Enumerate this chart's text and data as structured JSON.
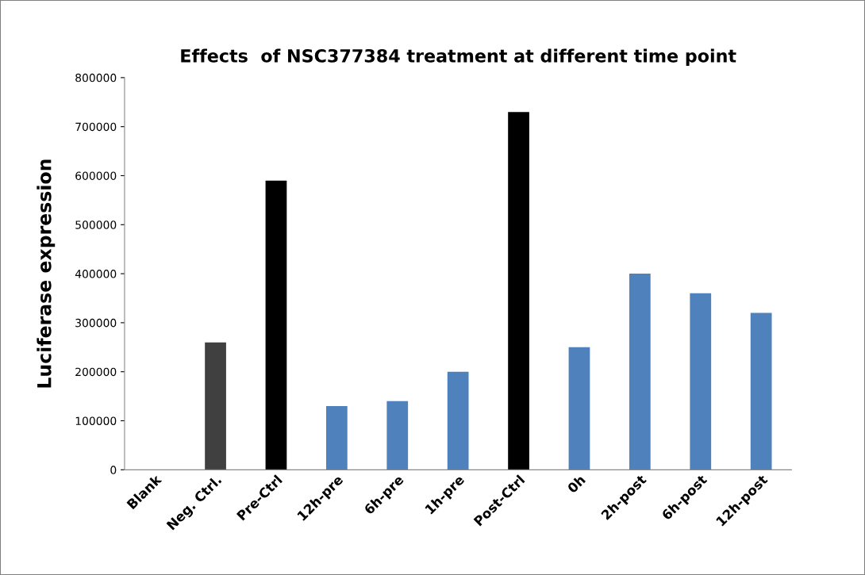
{
  "chart_data": {
    "type": "bar",
    "title": "Effects  of NSC377384 treatment at different time point",
    "ylabel": "Luciferase expression",
    "categories": [
      "Blank",
      "Neg. Ctrl.",
      "Pre-Ctrl",
      "12h-pre",
      "6h-pre",
      "1h-pre",
      "Post-Ctrl",
      "0h",
      "2h-post",
      "6h-post",
      "12h-post"
    ],
    "values": [
      0,
      260000,
      590000,
      130000,
      140000,
      200000,
      730000,
      250000,
      400000,
      360000,
      320000
    ],
    "colors": [
      "#4f81bd",
      "#404040",
      "#000000",
      "#4f81bd",
      "#4f81bd",
      "#4f81bd",
      "#000000",
      "#4f81bd",
      "#4f81bd",
      "#4f81bd",
      "#4f81bd"
    ],
    "ylim": [
      0,
      800000
    ],
    "yticks": [
      0,
      100000,
      200000,
      300000,
      400000,
      500000,
      600000,
      700000,
      800000
    ],
    "grid": false,
    "legend": false
  }
}
